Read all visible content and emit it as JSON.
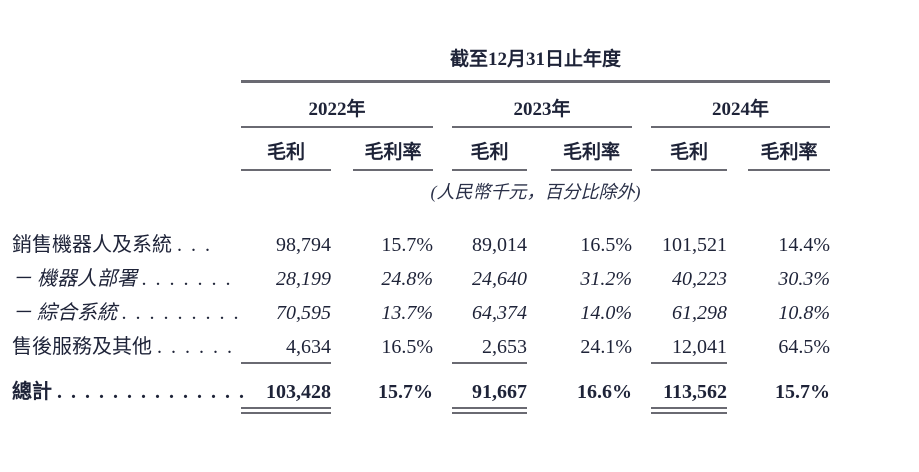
{
  "table": {
    "title": "截至12月31日止年度",
    "unit_note": "(人民幣千元，百分比除外)",
    "year_groups": [
      "2022年",
      "2023年",
      "2024年"
    ],
    "sub_headers": {
      "gross_profit": "毛利",
      "gross_margin": "毛利率"
    },
    "rows": [
      {
        "label": "銷售機器人及系統",
        "dots": ". . .",
        "values": [
          "98,794",
          "15.7%",
          "89,014",
          "16.5%",
          "101,521",
          "14.4%"
        ]
      },
      {
        "label": "－ 機器人部署",
        "dots": ". . . . . . .",
        "values": [
          "28,199",
          "24.8%",
          "24,640",
          "31.2%",
          "40,223",
          "30.3%"
        ]
      },
      {
        "label": "－ 綜合系統",
        "dots": ". . . . . . . . .",
        "values": [
          "70,595",
          "13.7%",
          "64,374",
          "14.0%",
          "61,298",
          "10.8%"
        ]
      },
      {
        "label": "售後服務及其他",
        "dots": ". . . . . .",
        "values": [
          "4,634",
          "16.5%",
          "2,653",
          "24.1%",
          "12,041",
          "64.5%"
        ]
      }
    ],
    "total": {
      "label": "總計",
      "dots": ". . . . . . . . . . . . . .",
      "values": [
        "103,428",
        "15.7%",
        "91,667",
        "16.6%",
        "113,562",
        "15.7%"
      ]
    }
  }
}
